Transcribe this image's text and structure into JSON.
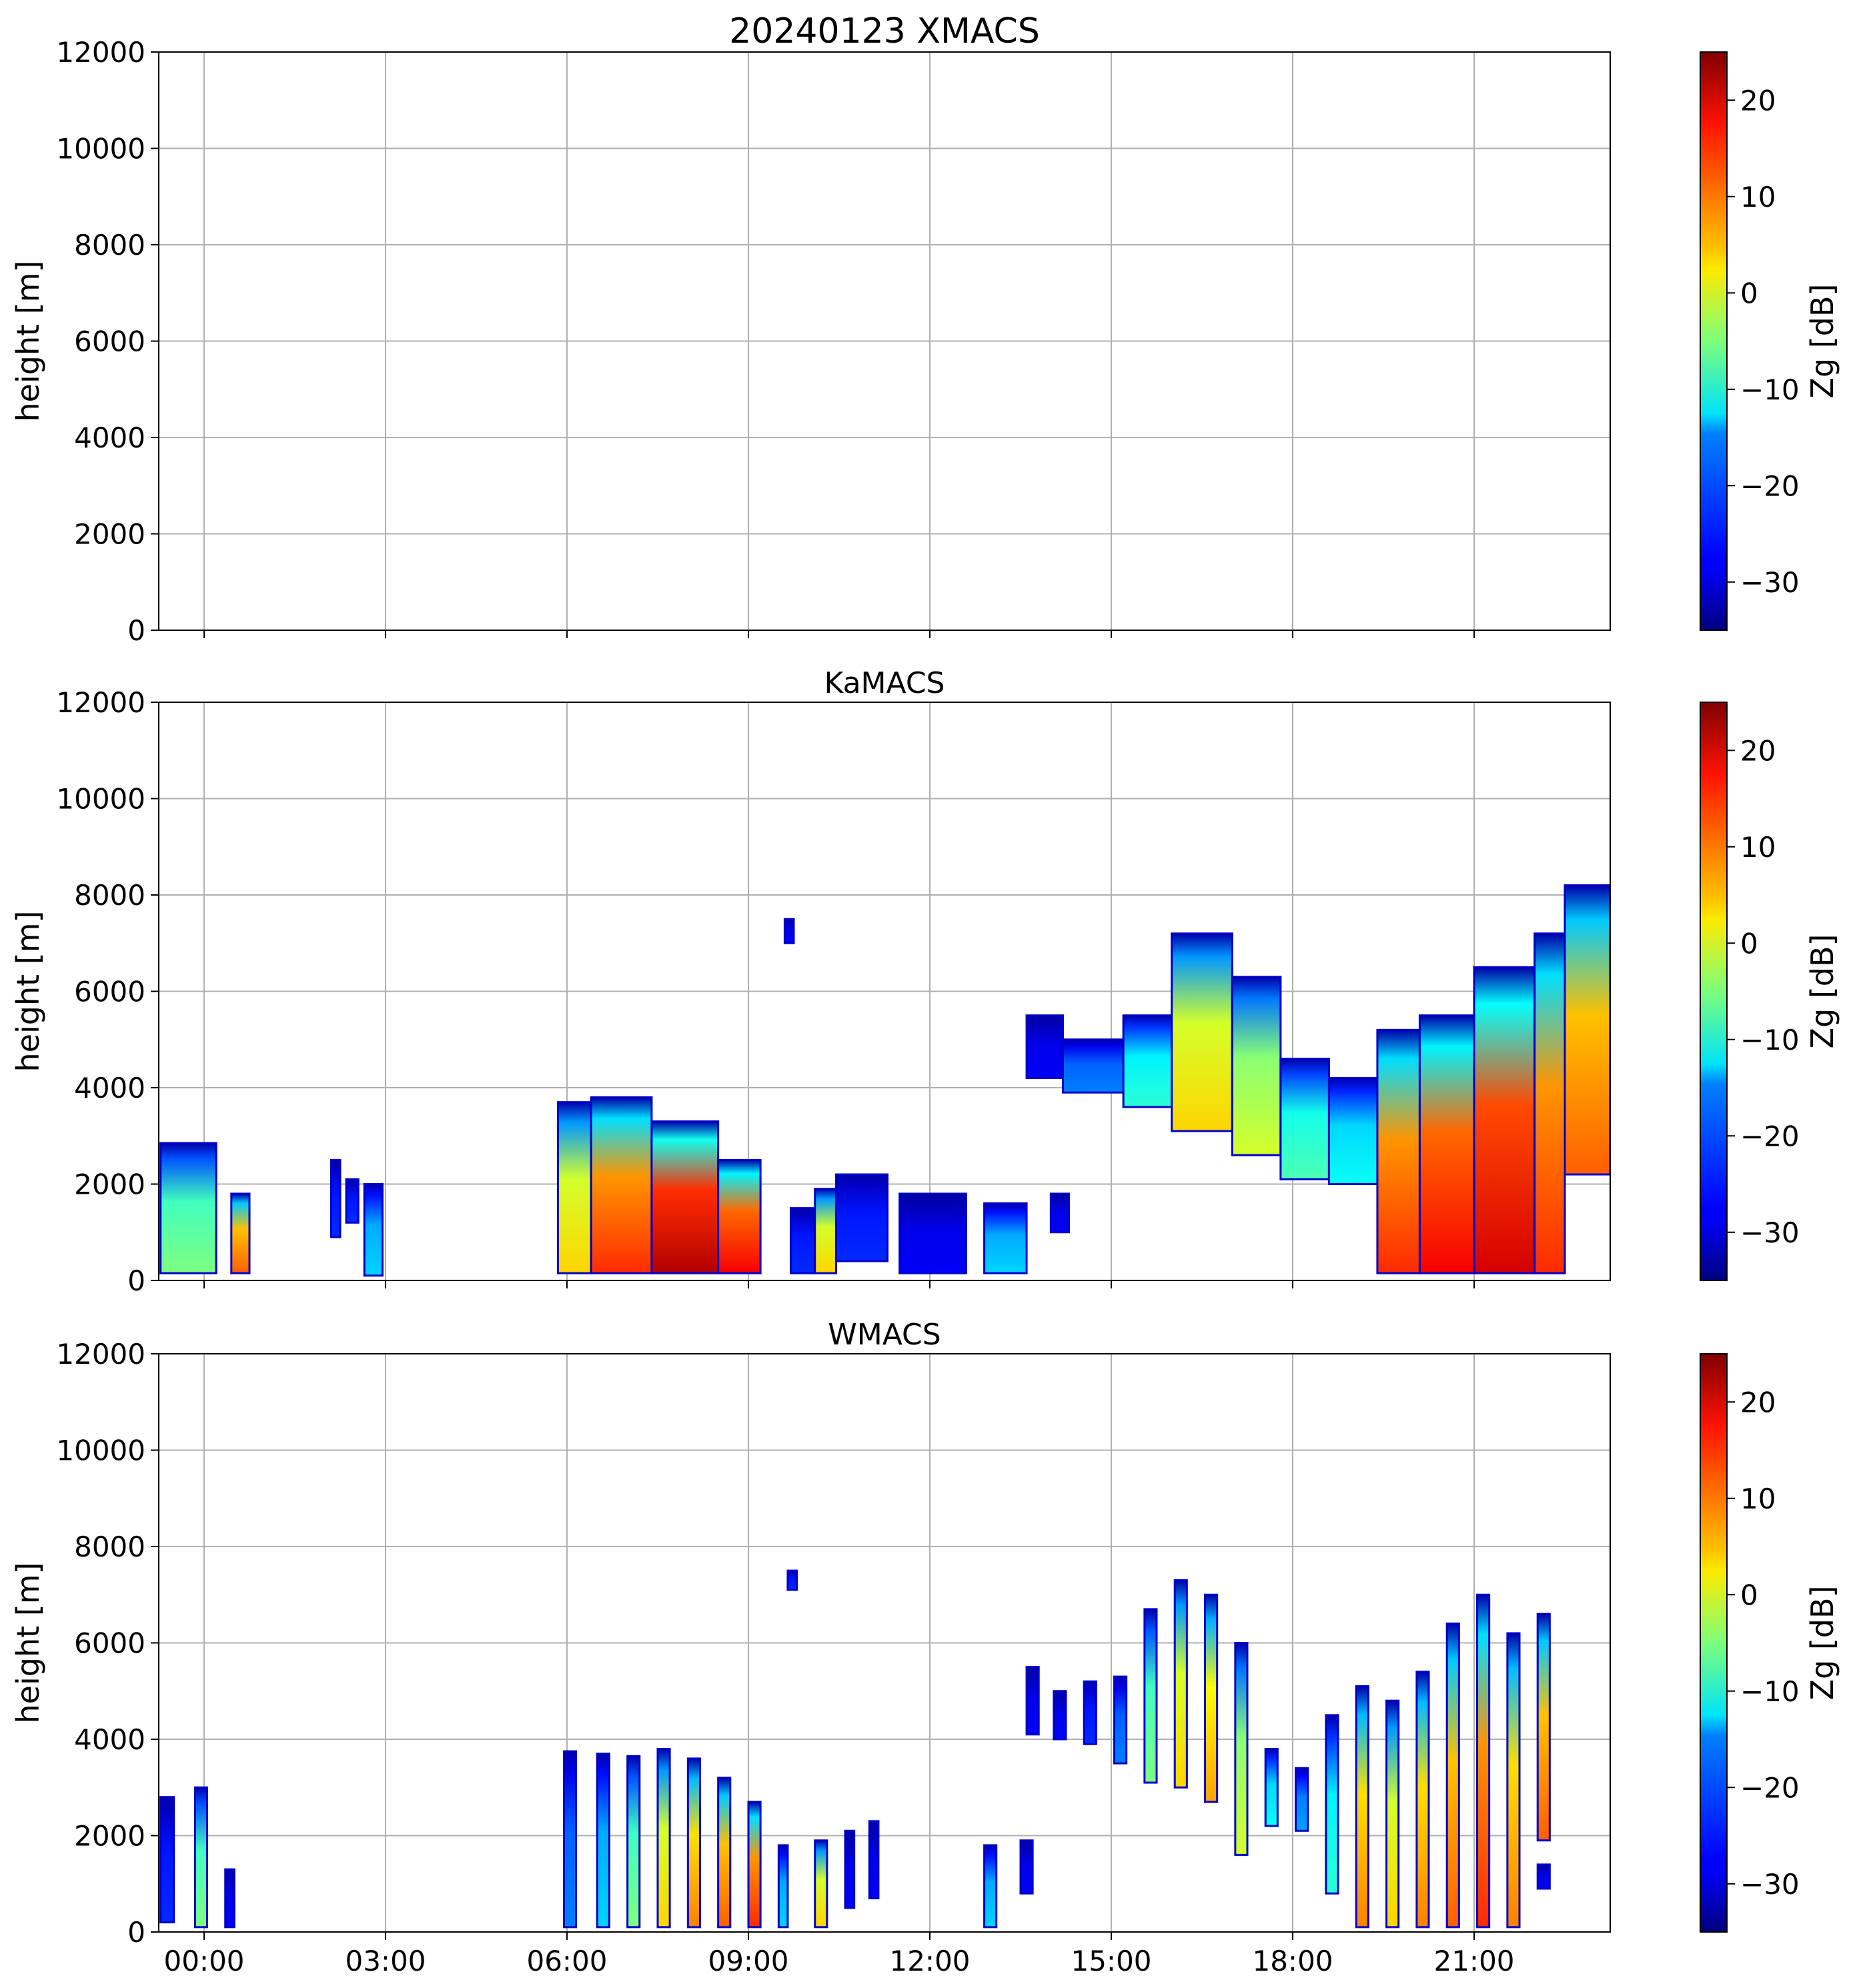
{
  "figure_title": "20240123 XMACS",
  "chart_data": [
    {
      "type": "heatmap",
      "title": "20240123 XMACS",
      "xlabel": "",
      "ylabel": "height [m]",
      "ylim": [
        0,
        12000
      ],
      "yticks": [
        0,
        2000,
        4000,
        6000,
        8000,
        10000,
        12000
      ],
      "xlim_hours": [
        -0.75,
        23.25
      ],
      "xticks": [
        "00:00",
        "03:00",
        "06:00",
        "09:00",
        "12:00",
        "15:00",
        "18:00",
        "21:00"
      ],
      "show_xtick_labels": false,
      "grid": true,
      "colorbar": {
        "label": "Zg [dB]",
        "range": [
          -35,
          25
        ],
        "ticks": [
          -30,
          -20,
          -10,
          0,
          10,
          20
        ],
        "colormap": "jet"
      },
      "echoes": []
    },
    {
      "type": "heatmap",
      "title": "KaMACS",
      "xlabel": "",
      "ylabel": "height [m]",
      "ylim": [
        0,
        12000
      ],
      "yticks": [
        0,
        2000,
        4000,
        6000,
        8000,
        10000,
        12000
      ],
      "xlim_hours": [
        -0.75,
        23.25
      ],
      "xticks": [
        "00:00",
        "03:00",
        "06:00",
        "09:00",
        "12:00",
        "15:00",
        "18:00",
        "21:00"
      ],
      "show_xtick_labels": false,
      "grid": true,
      "colorbar": {
        "label": "Zg [dB]",
        "range": [
          -35,
          25
        ],
        "ticks": [
          -30,
          -20,
          -10,
          0,
          10,
          20
        ],
        "colormap": "jet"
      },
      "echoes": [
        {
          "t0": -0.72,
          "t1": 0.2,
          "top": 2850,
          "base": 150,
          "zmax": -5
        },
        {
          "t0": 0.45,
          "t1": 0.75,
          "top": 1800,
          "base": 150,
          "zmax": 12
        },
        {
          "t0": 2.1,
          "t1": 2.25,
          "top": 2500,
          "base": 900,
          "zmax": -25
        },
        {
          "t0": 2.35,
          "t1": 2.55,
          "top": 2100,
          "base": 1200,
          "zmax": -25
        },
        {
          "t0": 2.65,
          "t1": 2.95,
          "top": 2000,
          "base": 100,
          "zmax": -15
        },
        {
          "t0": 5.85,
          "t1": 6.4,
          "top": 3700,
          "base": 150,
          "zmax": 5
        },
        {
          "t0": 6.4,
          "t1": 7.4,
          "top": 3800,
          "base": 150,
          "zmax": 15
        },
        {
          "t0": 7.4,
          "t1": 8.5,
          "top": 3300,
          "base": 150,
          "zmax": 22
        },
        {
          "t0": 8.5,
          "t1": 9.2,
          "top": 2500,
          "base": 150,
          "zmax": 18
        },
        {
          "t0": 9.7,
          "t1": 10.1,
          "top": 1500,
          "base": 150,
          "zmax": -25
        },
        {
          "t0": 10.1,
          "t1": 10.45,
          "top": 1900,
          "base": 150,
          "zmax": 5
        },
        {
          "t0": 10.45,
          "t1": 11.3,
          "top": 2200,
          "base": 400,
          "zmax": -25
        },
        {
          "t0": 11.5,
          "t1": 12.6,
          "top": 1800,
          "base": 150,
          "zmax": -28
        },
        {
          "t0": 12.9,
          "t1": 13.6,
          "top": 1600,
          "base": 150,
          "zmax": -15
        },
        {
          "t0": 14.0,
          "t1": 14.3,
          "top": 1800,
          "base": 1000,
          "zmax": -28
        },
        {
          "t0": 13.6,
          "t1": 14.2,
          "top": 5500,
          "base": 4200,
          "zmax": -28
        },
        {
          "t0": 14.2,
          "t1": 15.2,
          "top": 5000,
          "base": 3900,
          "zmax": -20
        },
        {
          "t0": 15.2,
          "t1": 16.0,
          "top": 5500,
          "base": 3600,
          "zmax": -10
        },
        {
          "t0": 16.0,
          "t1": 17.0,
          "top": 7200,
          "base": 3100,
          "zmax": 5
        },
        {
          "t0": 17.0,
          "t1": 17.8,
          "top": 6300,
          "base": 2600,
          "zmax": 0
        },
        {
          "t0": 17.8,
          "t1": 18.6,
          "top": 4600,
          "base": 2100,
          "zmax": -8
        },
        {
          "t0": 18.6,
          "t1": 19.4,
          "top": 4200,
          "base": 2000,
          "zmax": -12
        },
        {
          "t0": 19.4,
          "t1": 20.1,
          "top": 5200,
          "base": 150,
          "zmax": 15
        },
        {
          "t0": 20.1,
          "t1": 21.0,
          "top": 5500,
          "base": 150,
          "zmax": 18
        },
        {
          "t0": 21.0,
          "t1": 22.0,
          "top": 6500,
          "base": 150,
          "zmax": 20
        },
        {
          "t0": 22.0,
          "t1": 22.5,
          "top": 7200,
          "base": 150,
          "zmax": 15
        },
        {
          "t0": 22.5,
          "t1": 23.25,
          "top": 8200,
          "base": 2200,
          "zmax": 12
        },
        {
          "t0": 9.6,
          "t1": 9.75,
          "top": 7500,
          "base": 7000,
          "zmax": -28
        }
      ]
    },
    {
      "type": "heatmap",
      "title": "WMACS",
      "xlabel": "",
      "ylabel": "height [m]",
      "ylim": [
        0,
        12000
      ],
      "yticks": [
        0,
        2000,
        4000,
        6000,
        8000,
        10000,
        12000
      ],
      "xlim_hours": [
        -0.75,
        23.25
      ],
      "xticks": [
        "00:00",
        "03:00",
        "06:00",
        "09:00",
        "12:00",
        "15:00",
        "18:00",
        "21:00"
      ],
      "show_xtick_labels": true,
      "grid": true,
      "colorbar": {
        "label": "Zg [dB]",
        "range": [
          -35,
          25
        ],
        "ticks": [
          -30,
          -20,
          -10,
          0,
          10,
          20
        ],
        "colormap": "jet"
      },
      "echoes": [
        {
          "t0": -0.72,
          "t1": -0.5,
          "top": 2800,
          "base": 200,
          "zmax": -25
        },
        {
          "t0": -0.15,
          "t1": 0.05,
          "top": 3000,
          "base": 100,
          "zmax": -5
        },
        {
          "t0": 0.35,
          "t1": 0.5,
          "top": 1300,
          "base": 100,
          "zmax": -28
        },
        {
          "t0": 5.95,
          "t1": 6.15,
          "top": 3750,
          "base": 100,
          "zmax": -20
        },
        {
          "t0": 6.5,
          "t1": 6.7,
          "top": 3700,
          "base": 100,
          "zmax": -15
        },
        {
          "t0": 7.0,
          "t1": 7.2,
          "top": 3650,
          "base": 100,
          "zmax": -5
        },
        {
          "t0": 7.5,
          "t1": 7.7,
          "top": 3800,
          "base": 100,
          "zmax": 5
        },
        {
          "t0": 8.0,
          "t1": 8.2,
          "top": 3600,
          "base": 100,
          "zmax": 10
        },
        {
          "t0": 8.5,
          "t1": 8.7,
          "top": 3200,
          "base": 100,
          "zmax": 12
        },
        {
          "t0": 9.0,
          "t1": 9.2,
          "top": 2700,
          "base": 100,
          "zmax": 15
        },
        {
          "t0": 9.5,
          "t1": 9.65,
          "top": 1800,
          "base": 100,
          "zmax": -15
        },
        {
          "t0": 10.1,
          "t1": 10.3,
          "top": 1900,
          "base": 100,
          "zmax": 5
        },
        {
          "t0": 10.6,
          "t1": 10.75,
          "top": 2100,
          "base": 500,
          "zmax": -28
        },
        {
          "t0": 11.0,
          "t1": 11.15,
          "top": 2300,
          "base": 700,
          "zmax": -28
        },
        {
          "t0": 12.9,
          "t1": 13.1,
          "top": 1800,
          "base": 100,
          "zmax": -15
        },
        {
          "t0": 13.5,
          "t1": 13.7,
          "top": 1900,
          "base": 800,
          "zmax": -28
        },
        {
          "t0": 13.6,
          "t1": 13.8,
          "top": 5500,
          "base": 4100,
          "zmax": -28
        },
        {
          "t0": 14.05,
          "t1": 14.25,
          "top": 5000,
          "base": 4000,
          "zmax": -28
        },
        {
          "t0": 14.55,
          "t1": 14.75,
          "top": 5200,
          "base": 3900,
          "zmax": -25
        },
        {
          "t0": 15.05,
          "t1": 15.25,
          "top": 5300,
          "base": 3500,
          "zmax": -20
        },
        {
          "t0": 15.55,
          "t1": 15.75,
          "top": 6700,
          "base": 3100,
          "zmax": -5
        },
        {
          "t0": 16.05,
          "t1": 16.25,
          "top": 7300,
          "base": 3000,
          "zmax": 5
        },
        {
          "t0": 16.55,
          "t1": 16.75,
          "top": 7000,
          "base": 2700,
          "zmax": 8
        },
        {
          "t0": 17.05,
          "t1": 17.25,
          "top": 6000,
          "base": 1600,
          "zmax": 0
        },
        {
          "t0": 17.55,
          "t1": 17.75,
          "top": 3800,
          "base": 2200,
          "zmax": -12
        },
        {
          "t0": 18.05,
          "t1": 18.25,
          "top": 3400,
          "base": 2100,
          "zmax": -18
        },
        {
          "t0": 18.55,
          "t1": 18.75,
          "top": 4500,
          "base": 800,
          "zmax": -10
        },
        {
          "t0": 19.05,
          "t1": 19.25,
          "top": 5100,
          "base": 100,
          "zmax": 10
        },
        {
          "t0": 19.55,
          "t1": 19.75,
          "top": 4800,
          "base": 100,
          "zmax": 5
        },
        {
          "t0": 20.05,
          "t1": 20.25,
          "top": 5400,
          "base": 100,
          "zmax": 10
        },
        {
          "t0": 20.55,
          "t1": 20.75,
          "top": 6400,
          "base": 100,
          "zmax": 12
        },
        {
          "t0": 21.05,
          "t1": 21.25,
          "top": 7000,
          "base": 100,
          "zmax": 15
        },
        {
          "t0": 21.55,
          "t1": 21.75,
          "top": 6200,
          "base": 100,
          "zmax": 10
        },
        {
          "t0": 22.05,
          "t1": 22.25,
          "top": 6600,
          "base": 1900,
          "zmax": 12
        },
        {
          "t0": 22.05,
          "t1": 22.25,
          "top": 1400,
          "base": 900,
          "zmax": -28
        },
        {
          "t0": 9.65,
          "t1": 9.8,
          "top": 7500,
          "base": 7100,
          "zmax": -25
        }
      ]
    }
  ]
}
